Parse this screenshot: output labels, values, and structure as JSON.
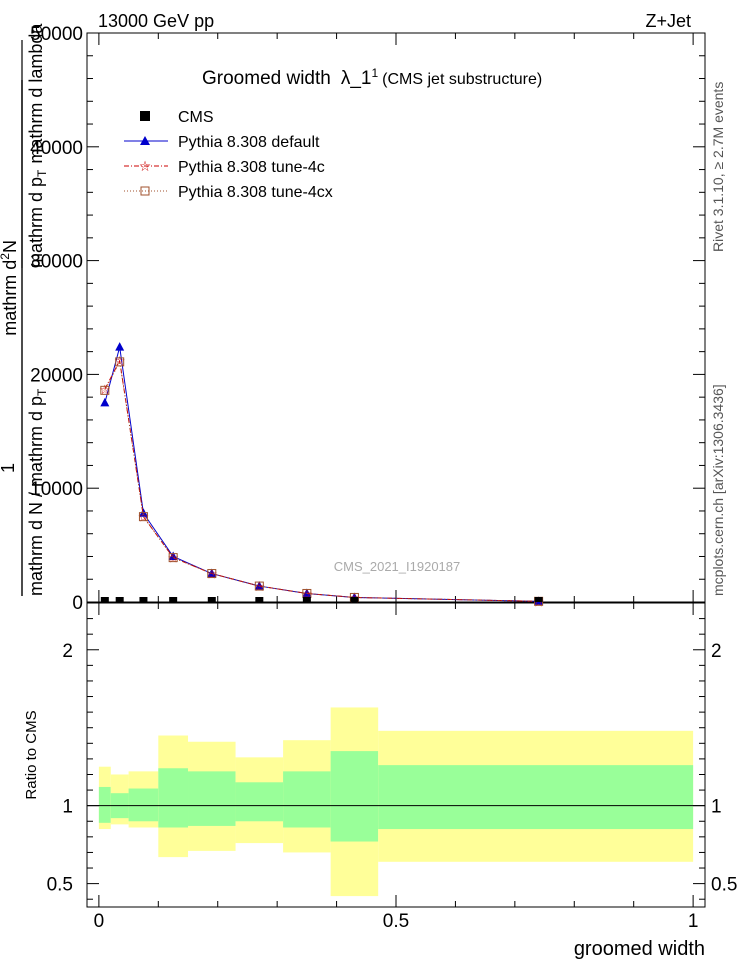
{
  "header": {
    "left": "13000 GeV pp",
    "right": "Z+Jet"
  },
  "side": {
    "rivet": "Rivet 3.1.10, ≥ 2.7M events",
    "mcplots": "mcplots.cern.ch [arXiv:1306.3436]"
  },
  "watermark": "CMS_2021_I1920187",
  "colors": {
    "default": "#0000cc",
    "tune4c": "#cc0000",
    "tune4cx": "#a0522d",
    "band_inner": "#99ff99",
    "band_outer": "#ffff99"
  },
  "chart_data": [
    {
      "type": "line",
      "title": "Groomed width",
      "title_math": "λ_1",
      "title_sup": "1",
      "title_note": "(CMS jet substructure)",
      "ylabel_num": "1",
      "ylabel_den": "mathrm d N / mathrm d p",
      "ylabel_den_sub": "T",
      "ylabel_frac_num": "mathrm d",
      "ylabel_frac_num_sup": "2",
      "ylabel_frac_num_rest": "N",
      "ylabel_frac_den": "mathrm d p",
      "ylabel_frac_den_sub": "T",
      "ylabel_frac_den_rest": "mathrm d lambda",
      "xlim": [
        -0.02,
        1.02
      ],
      "ylim": [
        0,
        50000
      ],
      "yticks": [
        0,
        10000,
        20000,
        30000,
        40000,
        50000
      ],
      "ytick_labels": [
        "0",
        "10000",
        "20000",
        "30000",
        "40000",
        "50000"
      ],
      "legend": [
        {
          "label": "CMS",
          "key": "cms"
        },
        {
          "label": "Pythia 8.308 default",
          "key": "default"
        },
        {
          "label": "Pythia 8.308 tune-4c",
          "key": "tune4c"
        },
        {
          "label": "Pythia 8.308 tune-4cx",
          "key": "tune4cx"
        }
      ],
      "cms_x": [
        0.01,
        0.035,
        0.075,
        0.125,
        0.19,
        0.27,
        0.35,
        0.43,
        0.74
      ],
      "cms_values": [
        0,
        0,
        0,
        0,
        0,
        0,
        0,
        0,
        0
      ],
      "series": [
        {
          "name": "Pythia 8.308 default",
          "key": "default",
          "x": [
            0.01,
            0.035,
            0.075,
            0.125,
            0.19,
            0.27,
            0.35,
            0.43,
            0.74
          ],
          "values": [
            17500,
            22400,
            7800,
            4000,
            2500,
            1400,
            750,
            400,
            60
          ]
        },
        {
          "name": "Pythia 8.308 tune-4c",
          "key": "tune4c",
          "x": [
            0.01,
            0.035,
            0.075,
            0.125,
            0.19,
            0.27,
            0.35,
            0.43,
            0.74
          ],
          "values": [
            18700,
            21200,
            7500,
            3900,
            2500,
            1400,
            750,
            400,
            60
          ]
        },
        {
          "name": "Pythia 8.308 tune-4cx",
          "key": "tune4cx",
          "x": [
            0.01,
            0.035,
            0.075,
            0.125,
            0.19,
            0.27,
            0.35,
            0.43,
            0.74
          ],
          "values": [
            18600,
            21100,
            7500,
            3900,
            2500,
            1400,
            750,
            400,
            60
          ]
        }
      ]
    },
    {
      "type": "area",
      "xlabel": "groomed width",
      "ylabel": "Ratio to CMS",
      "xlim": [
        -0.02,
        1.02
      ],
      "ylim": [
        0.35,
        2.3
      ],
      "yticks": [
        0.5,
        1,
        2
      ],
      "ytick_labels": [
        "0.5",
        "1",
        "2"
      ],
      "xticks": [
        0,
        0.5,
        1
      ],
      "xtick_labels": [
        "0",
        "0.5",
        "1"
      ],
      "bins": [
        {
          "lo": 0.0,
          "hi": 0.02,
          "inner": [
            0.89,
            1.12
          ],
          "outer": [
            0.85,
            1.25
          ]
        },
        {
          "lo": 0.02,
          "hi": 0.05,
          "inner": [
            0.92,
            1.08
          ],
          "outer": [
            0.88,
            1.2
          ]
        },
        {
          "lo": 0.05,
          "hi": 0.1,
          "inner": [
            0.9,
            1.11
          ],
          "outer": [
            0.86,
            1.22
          ]
        },
        {
          "lo": 0.1,
          "hi": 0.15,
          "inner": [
            0.86,
            1.24
          ],
          "outer": [
            0.67,
            1.45
          ]
        },
        {
          "lo": 0.15,
          "hi": 0.23,
          "inner": [
            0.87,
            1.22
          ],
          "outer": [
            0.71,
            1.41
          ]
        },
        {
          "lo": 0.23,
          "hi": 0.31,
          "inner": [
            0.9,
            1.15
          ],
          "outer": [
            0.76,
            1.31
          ]
        },
        {
          "lo": 0.31,
          "hi": 0.39,
          "inner": [
            0.86,
            1.22
          ],
          "outer": [
            0.7,
            1.42
          ]
        },
        {
          "lo": 0.39,
          "hi": 0.47,
          "inner": [
            0.77,
            1.35
          ],
          "outer": [
            0.42,
            1.63
          ]
        },
        {
          "lo": 0.47,
          "hi": 1.0,
          "inner": [
            0.85,
            1.26
          ],
          "outer": [
            0.64,
            1.48
          ]
        }
      ]
    }
  ]
}
